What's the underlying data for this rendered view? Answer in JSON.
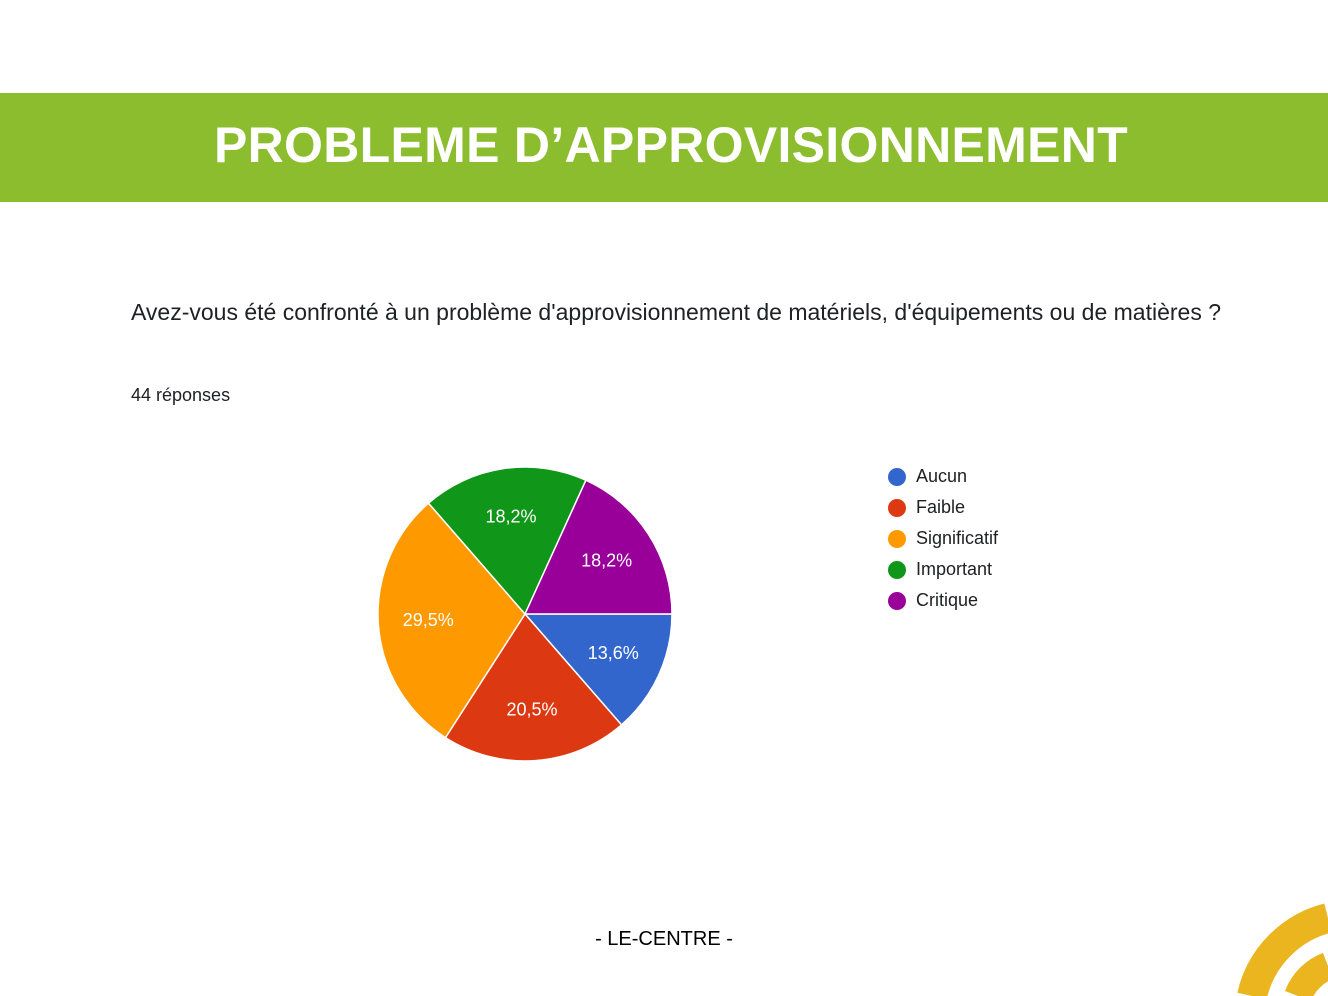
{
  "banner": {
    "title": "PROBLEME D’APPROVISIONNEMENT",
    "color": "#8cbd2f"
  },
  "question": {
    "text": "Avez-vous été confronté à un problème d'approvisionnement de matériels, d'équipements ou de matières ?",
    "responses": "44 réponses"
  },
  "footer": {
    "text": "- LE-CENTRE -"
  },
  "decoration": {
    "accent_color": "#ebb51f"
  },
  "chart_data": {
    "type": "pie",
    "title": "",
    "legend_position": "right",
    "categories": [
      "Aucun",
      "Faible",
      "Significatif",
      "Important",
      "Critique"
    ],
    "values": [
      13.6,
      20.5,
      29.5,
      18.2,
      18.2
    ],
    "labels": [
      "13,6%",
      "20,5%",
      "29,5%",
      "18,2%",
      "18,2%"
    ],
    "colors": [
      "#3366cc",
      "#dc3912",
      "#ff9900",
      "#109618",
      "#990099"
    ],
    "start": "3 o'clock",
    "direction": "clockwise"
  }
}
